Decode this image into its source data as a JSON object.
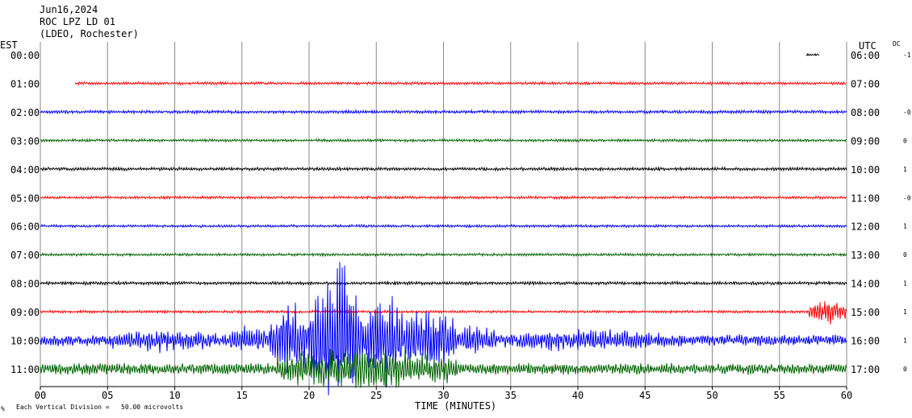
{
  "header": {
    "date": "Jun16,2024",
    "station": "ROC LPZ LD 01",
    "network": "(LDEO, Rochester)"
  },
  "axes": {
    "left_title": "EST",
    "right_title": "UTC",
    "dc_title": "DC",
    "xlabel": "TIME (MINUTES)",
    "scale_note": "Each Vertical Division =   50.00 microvolts",
    "corner_mark": "%"
  },
  "chart_data": {
    "type": "line",
    "title": "ROC LPZ LD 01",
    "xlabel": "TIME (MINUTES)",
    "xlim": [
      0,
      60
    ],
    "x_ticks": [
      "00",
      "05",
      "10",
      "15",
      "20",
      "25",
      "30",
      "35",
      "40",
      "45",
      "50",
      "55",
      "60"
    ],
    "grid": true,
    "rows": [
      {
        "est": "00:00",
        "utc": "06:00",
        "dc": "-1",
        "color": "#000000",
        "start_min": 57.0,
        "end_min": 58.0,
        "amplitude": 1,
        "events": []
      },
      {
        "est": "01:00",
        "utc": "07:00",
        "dc": "",
        "color": "#ff0000",
        "start_min": 2.6,
        "end_min": 60,
        "amplitude": 1.2,
        "events": []
      },
      {
        "est": "02:00",
        "utc": "08:00",
        "dc": "-0",
        "color": "#0000ff",
        "start_min": 0,
        "end_min": 60,
        "amplitude": 1.4,
        "events": []
      },
      {
        "est": "03:00",
        "utc": "09:00",
        "dc": "0",
        "color": "#006400",
        "start_min": 0,
        "end_min": 60,
        "amplitude": 1.2,
        "events": []
      },
      {
        "est": "04:00",
        "utc": "10:00",
        "dc": "1",
        "color": "#000000",
        "start_min": 0,
        "end_min": 60,
        "amplitude": 1.4,
        "events": []
      },
      {
        "est": "05:00",
        "utc": "11:00",
        "dc": "-0",
        "color": "#ff0000",
        "start_min": 0,
        "end_min": 60,
        "amplitude": 1.2,
        "events": []
      },
      {
        "est": "06:00",
        "utc": "12:00",
        "dc": "1",
        "color": "#0000ff",
        "start_min": 0,
        "end_min": 60,
        "amplitude": 1.2,
        "events": []
      },
      {
        "est": "07:00",
        "utc": "13:00",
        "dc": "0",
        "color": "#006400",
        "start_min": 0,
        "end_min": 60,
        "amplitude": 1.2,
        "events": []
      },
      {
        "est": "08:00",
        "utc": "14:00",
        "dc": "1",
        "color": "#000000",
        "start_min": 0,
        "end_min": 60,
        "amplitude": 1.4,
        "events": []
      },
      {
        "est": "09:00",
        "utc": "15:00",
        "dc": "1",
        "color": "#ff0000",
        "start_min": 0,
        "end_min": 60,
        "amplitude": 1.2,
        "events": [
          {
            "from": 57.2,
            "to": 60,
            "amp": 16
          }
        ]
      },
      {
        "est": "10:00",
        "utc": "16:00",
        "dc": "1",
        "color": "#0000ff",
        "start_min": 0,
        "end_min": 60,
        "amplitude": 5,
        "events": [
          {
            "from": 5,
            "to": 14,
            "amp": 14
          },
          {
            "from": 14,
            "to": 17,
            "amp": 18
          },
          {
            "from": 17,
            "to": 20,
            "amp": 55
          },
          {
            "from": 20,
            "to": 24,
            "amp": 100
          },
          {
            "from": 24,
            "to": 27,
            "amp": 70
          },
          {
            "from": 27,
            "to": 31,
            "amp": 45
          },
          {
            "from": 31,
            "to": 34,
            "amp": 22
          },
          {
            "from": 34,
            "to": 48,
            "amp": 14
          }
        ]
      },
      {
        "est": "11:00",
        "utc": "17:00",
        "dc": "0",
        "color": "#006400",
        "start_min": 0,
        "end_min": 60,
        "amplitude": 5,
        "events": [
          {
            "from": 17.5,
            "to": 31,
            "amp": 28
          }
        ]
      }
    ]
  }
}
